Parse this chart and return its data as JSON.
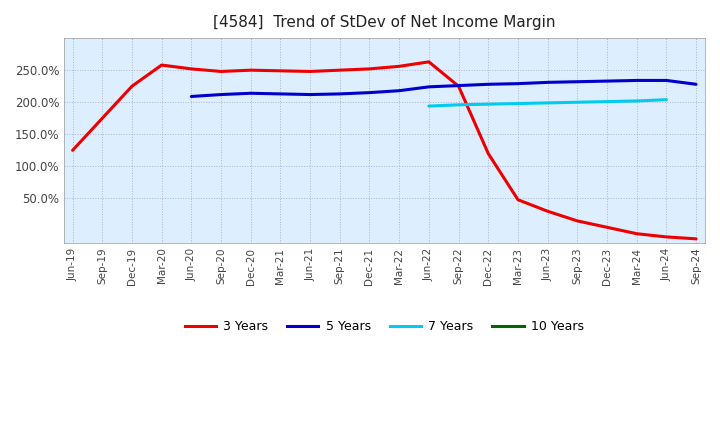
{
  "title": "[4584]  Trend of StDev of Net Income Margin",
  "background_color": "#ffffff",
  "plot_bg_color": "#ddeeff",
  "grid_color": "#aaaacc",
  "x_labels": [
    "Jun-19",
    "Sep-19",
    "Dec-19",
    "Mar-20",
    "Jun-20",
    "Sep-20",
    "Dec-20",
    "Mar-21",
    "Jun-21",
    "Sep-21",
    "Dec-21",
    "Mar-22",
    "Jun-22",
    "Sep-22",
    "Dec-22",
    "Mar-23",
    "Jun-23",
    "Sep-23",
    "Dec-23",
    "Mar-24",
    "Jun-24",
    "Sep-24"
  ],
  "series": {
    "3y": {
      "color": "#ee0000",
      "label": "3 Years",
      "values": [
        125,
        175,
        225,
        258,
        252,
        248,
        250,
        249,
        248,
        250,
        252,
        256,
        263,
        225,
        120,
        48,
        30,
        15,
        5,
        -5,
        -10,
        -13
      ]
    },
    "5y": {
      "color": "#0000cc",
      "label": "5 Years",
      "values": [
        null,
        null,
        null,
        null,
        209,
        212,
        214,
        213,
        212,
        213,
        215,
        218,
        224,
        226,
        228,
        229,
        231,
        232,
        233,
        234,
        234,
        228
      ]
    },
    "7y": {
      "color": "#00ccee",
      "label": "7 Years",
      "values": [
        null,
        null,
        null,
        null,
        null,
        null,
        null,
        null,
        null,
        null,
        null,
        null,
        194,
        196,
        197,
        198,
        199,
        200,
        201,
        202,
        204,
        null
      ]
    },
    "10y": {
      "color": "#006600",
      "label": "10 Years",
      "values": [
        null,
        null,
        null,
        null,
        null,
        null,
        null,
        null,
        null,
        null,
        null,
        null,
        null,
        null,
        null,
        null,
        null,
        null,
        null,
        null,
        null,
        null
      ]
    }
  },
  "ylim": [
    -20,
    300
  ],
  "yticks": [
    50,
    100,
    150,
    200,
    250
  ],
  "ytick_labels": [
    "50.0%",
    "100.0%",
    "150.0%",
    "200.0%",
    "250.0%"
  ],
  "title_fontsize": 11,
  "legend_fontsize": 9
}
